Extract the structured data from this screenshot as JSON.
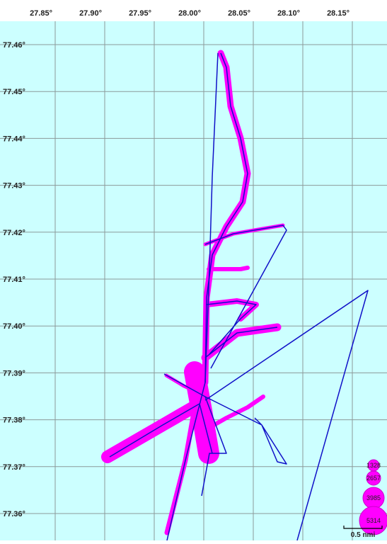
{
  "map": {
    "lon_ticks": [
      "27.85°",
      "27.90°",
      "27.95°",
      "28.00°",
      "28.05°",
      "28.10°",
      "28.15°"
    ],
    "lat_ticks": [
      "77.46°",
      "77.45°",
      "77.44°",
      "77.43°",
      "77.42°",
      "77.41°",
      "77.40°",
      "77.39°",
      "77.38°",
      "77.37°",
      "77.36°"
    ],
    "legend": [
      "1328",
      "2657",
      "3985",
      "5314"
    ],
    "scale_bar": "0.5 nmi"
  }
}
